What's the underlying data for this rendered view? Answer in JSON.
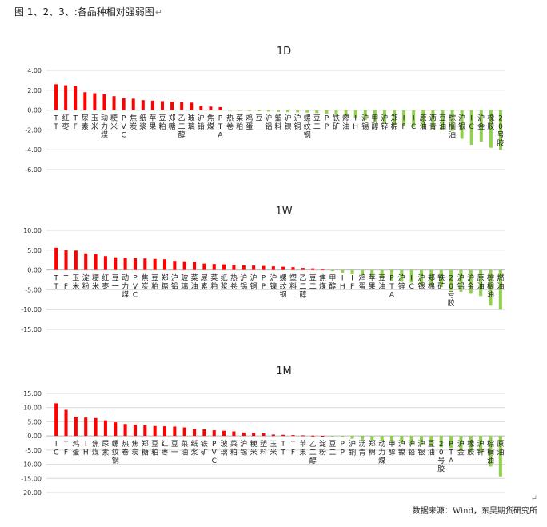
{
  "page": {
    "title": "图 1、2、3、:各品种相对强弱图",
    "return_mark": "↵",
    "source": "数据来源：Wind，东吴期货研究所",
    "source_return_mark": "↵"
  },
  "colors": {
    "positive": "#ff0000",
    "negative": "#92d050",
    "grid": "#d9d9d9",
    "axis": "#bfbfbf"
  },
  "chart_data": [
    {
      "type": "bar",
      "title": "1D",
      "yticks": [
        "4.00",
        "2.00",
        "0.00",
        "-2.00",
        "-4.00",
        "-6.00"
      ],
      "ylim": [
        -6,
        4
      ],
      "grid": true,
      "categories": [
        "TT",
        "红枣",
        "TF",
        "尿素",
        "玉米",
        "动力煤",
        "粳米",
        "PVC",
        "焦炭",
        "纸浆",
        "苹果",
        "豆粕",
        "郑糖",
        "乙二醇",
        "玻璃",
        "沪铅",
        "焦煤",
        "PTA",
        "热卷",
        "菜粕",
        "鸡蛋",
        "豆一",
        "沪铝",
        "塑料",
        "沪镍",
        "沪铜",
        "螺纹钢",
        "豆二",
        "PP",
        "铁矿",
        "燃油",
        "IH",
        "沪锡",
        "甲醇",
        "沪锌",
        "郑棉",
        "IF",
        "IC",
        "原油",
        "沥青",
        "豆油",
        "棕榈油",
        "沪银",
        "IC",
        "沪金",
        "橡胶",
        "20号胶"
      ],
      "values": [
        2.6,
        2.5,
        2.4,
        1.8,
        1.7,
        1.6,
        1.4,
        1.2,
        1.15,
        1.0,
        0.95,
        0.9,
        0.85,
        0.8,
        0.75,
        0.4,
        0.35,
        0.3,
        -0.05,
        -0.08,
        -0.1,
        -0.12,
        -0.15,
        -0.18,
        -0.2,
        -0.22,
        -0.25,
        -0.3,
        -0.35,
        -0.45,
        -0.6,
        -0.8,
        -1.0,
        -1.2,
        -1.35,
        -1.5,
        -1.6,
        -1.7,
        -1.8,
        -1.9,
        -2.0,
        -2.1,
        -2.9,
        -3.5,
        -3.2,
        -3.8,
        -4.0
      ]
    },
    {
      "type": "bar",
      "title": "1W",
      "yticks": [
        "10.00",
        "5.00",
        "0.00",
        "-5.00",
        "-10.00",
        "-15.00"
      ],
      "ylim": [
        -15,
        10
      ],
      "grid": true,
      "categories": [
        "TT",
        "TF",
        "玉米",
        "淀粉",
        "粳米",
        "红枣",
        "豆一",
        "动力煤",
        "PVC",
        "焦炭",
        "豆粕",
        "郑糖",
        "沪铅",
        "玻璃",
        "菜油",
        "尿素",
        "菜粕",
        "纸浆",
        "热卷",
        "沪锡",
        "沪铜",
        "PP",
        "沪镍",
        "螺纹钢",
        "塑料",
        "乙二醇",
        "豆二",
        "焦煤",
        "甲醇",
        "IH",
        "IF",
        "鸡蛋",
        "苹果",
        "豆油",
        "PTA",
        "沪锌",
        "IC",
        "沪银",
        "郑棉",
        "铁矿",
        "20号胶",
        "沪铝",
        "沪金",
        "原油",
        "棕榈油",
        "燃油"
      ],
      "values": [
        5.6,
        5.0,
        4.9,
        4.2,
        4.0,
        3.5,
        3.2,
        3.1,
        3.0,
        2.9,
        2.8,
        2.7,
        2.3,
        2.2,
        2.1,
        1.6,
        1.5,
        1.4,
        1.3,
        1.2,
        1.1,
        1.0,
        0.9,
        0.8,
        0.7,
        0.5,
        0.4,
        0.3,
        -0.3,
        -0.8,
        -1.1,
        -1.3,
        -1.6,
        -2.1,
        -2.7,
        -3.0,
        -3.2,
        -3.7,
        -4.0,
        -4.3,
        -5.2,
        -5.5,
        -6.0,
        -6.6,
        -9.0,
        -10.0
      ]
    },
    {
      "type": "bar",
      "title": "1M",
      "yticks": [
        "15.00",
        "10.00",
        "5.00",
        "0.00",
        "-5.00",
        "-10.00",
        "-15.00",
        "-20.00"
      ],
      "ylim": [
        -20,
        15
      ],
      "grid": true,
      "categories": [
        "IC",
        "TF",
        "鸡蛋",
        "IH",
        "焦煤",
        "尿素",
        "螺纹钢",
        "热卷",
        "焦炭",
        "郑糖",
        "豆粕",
        "红枣",
        "豆一",
        "菜油",
        "纸浆",
        "铁矿",
        "PVC",
        "玻璃",
        "菜粕",
        "沪锡",
        "粳米",
        "塑料",
        "玉米",
        "TT",
        "TF",
        "苹果",
        "乙二醇",
        "淀粉",
        "豆二",
        "PP",
        "沪铜",
        "沥青",
        "郑棉",
        "动力煤",
        "甲醇",
        "沪镍",
        "沪铅",
        "沪银",
        "豆油",
        "20号胶",
        "PTA",
        "沪金",
        "橡胶",
        "沪锌",
        "棕榈油",
        "原油"
      ],
      "values": [
        11.5,
        9.2,
        6.8,
        6.5,
        6.3,
        5.5,
        4.8,
        4.2,
        4.0,
        3.7,
        3.5,
        3.4,
        3.3,
        3.0,
        2.5,
        2.3,
        2.0,
        1.8,
        1.6,
        1.2,
        1.1,
        0.9,
        0.5,
        0.4,
        0.3,
        0.2,
        0.1,
        0.05,
        -0.2,
        -0.5,
        -1.0,
        -1.3,
        -1.5,
        -1.8,
        -2.1,
        -2.5,
        -3.0,
        -3.2,
        -3.7,
        -4.0,
        -4.3,
        -5.0,
        -5.6,
        -6.0,
        -10.8,
        -14.3
      ]
    }
  ]
}
